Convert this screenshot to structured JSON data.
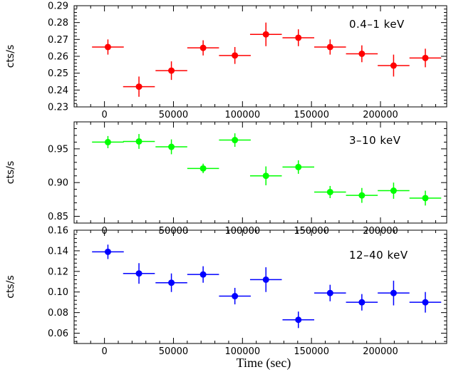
{
  "chart_data": {
    "type": "scatter",
    "xlabel": "Time (sec)",
    "x_ticks": [
      0,
      50000,
      100000,
      150000,
      200000
    ],
    "x_tick_labels": [
      "0",
      "50000",
      "100000",
      "150000",
      "200000"
    ],
    "xlim": [
      -22000,
      248000
    ],
    "x_bin_halfwidth": 11500,
    "x": [
      2500,
      25000,
      48500,
      71500,
      94500,
      117000,
      140500,
      163500,
      186500,
      209500,
      232500
    ],
    "panels": [
      {
        "label": "0.4–1 keV",
        "ylabel": "cts/s",
        "color": "#ff0000",
        "ylim": [
          0.23,
          0.29
        ],
        "y_ticks": [
          0.23,
          0.24,
          0.25,
          0.26,
          0.27,
          0.28,
          0.29
        ],
        "y_tick_labels": [
          "0.23",
          "0.24",
          "0.25",
          "0.26",
          "0.27",
          "0.28",
          "0.29"
        ],
        "values": [
          0.2655,
          0.242,
          0.2515,
          0.265,
          0.2605,
          0.273,
          0.271,
          0.2655,
          0.2615,
          0.2545,
          0.259
        ],
        "errors": [
          0.0045,
          0.006,
          0.0055,
          0.0045,
          0.005,
          0.007,
          0.005,
          0.0045,
          0.005,
          0.0065,
          0.0055
        ]
      },
      {
        "label": "3–10  keV",
        "ylabel": "cts/s",
        "color": "#00ff00",
        "ylim": [
          0.84,
          0.99
        ],
        "y_ticks": [
          0.85,
          0.9,
          0.95
        ],
        "y_tick_labels": [
          "0.85",
          "0.90",
          "0.95"
        ],
        "values": [
          0.96,
          0.961,
          0.953,
          0.921,
          0.963,
          0.91,
          0.923,
          0.886,
          0.881,
          0.888,
          0.877
        ],
        "errors": [
          0.009,
          0.011,
          0.011,
          0.007,
          0.01,
          0.014,
          0.01,
          0.009,
          0.011,
          0.012,
          0.011
        ]
      },
      {
        "label": "12–40  keV",
        "ylabel": "cts/s",
        "color": "#0000ff",
        "ylim": [
          0.05,
          0.16
        ],
        "y_ticks": [
          0.06,
          0.08,
          0.1,
          0.12,
          0.14,
          0.16
        ],
        "y_tick_labels": [
          "0.06",
          "0.08",
          "0.10",
          "0.12",
          "0.14",
          "0.16"
        ],
        "values": [
          0.139,
          0.118,
          0.109,
          0.117,
          0.096,
          0.112,
          0.073,
          0.099,
          0.09,
          0.099,
          0.09
        ],
        "errors": [
          0.007,
          0.01,
          0.009,
          0.008,
          0.008,
          0.012,
          0.008,
          0.008,
          0.008,
          0.012,
          0.01
        ]
      }
    ]
  }
}
